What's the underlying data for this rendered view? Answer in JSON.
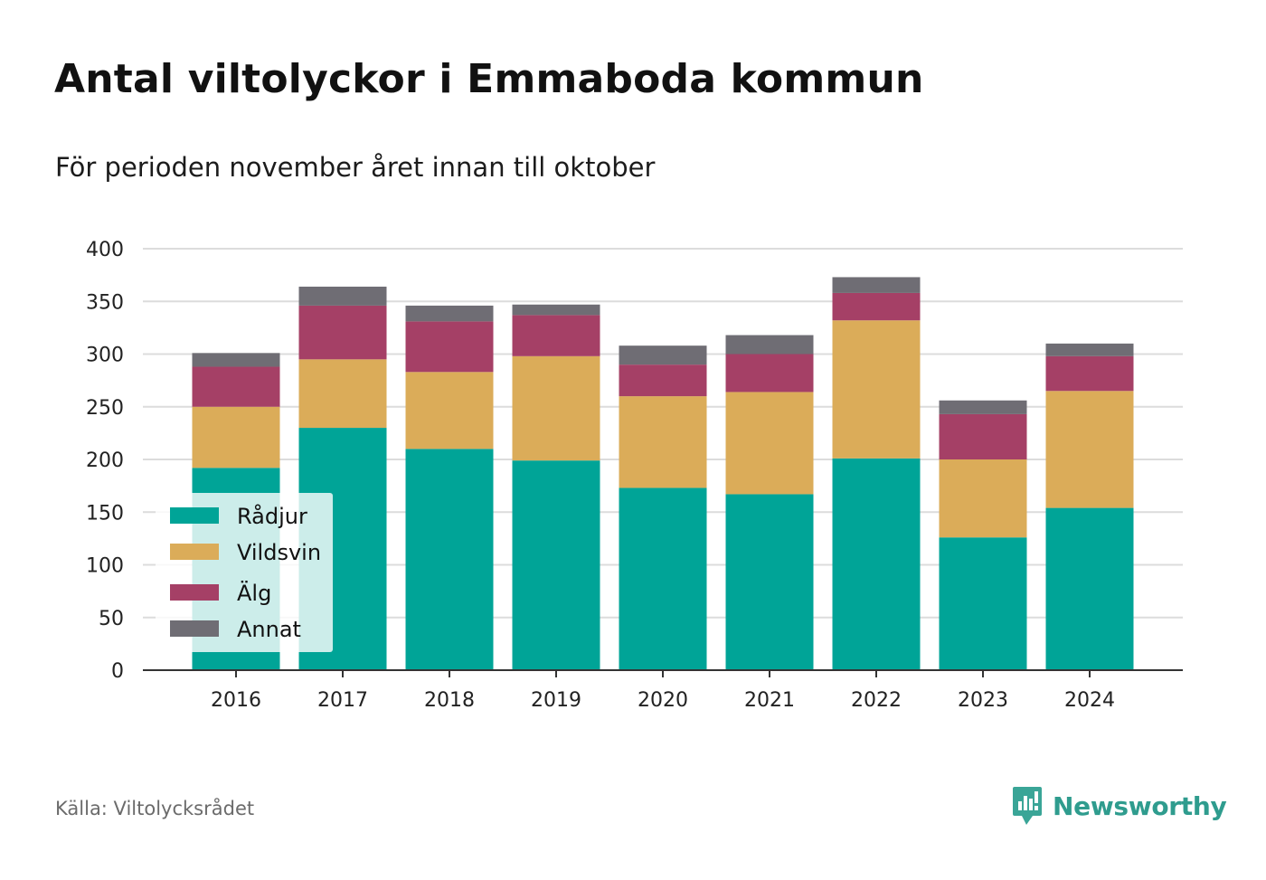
{
  "title": "Antal viltolyckor i Emmaboda kommun",
  "subtitle": "För perioden november året innan till oktober",
  "source": "Källa: Viltolycksrådet",
  "brand": {
    "name": "Newsworthy",
    "icon": "newsworthy-logo-icon",
    "color": "#2f9c8e"
  },
  "chart_data": {
    "type": "bar",
    "stacked": true,
    "title": "Antal viltolyckor i Emmaboda kommun",
    "subtitle": "För perioden november året innan till oktober",
    "xlabel": "",
    "ylabel": "",
    "ylim": [
      0,
      400
    ],
    "yticks": [
      "0",
      "50",
      "100",
      "150",
      "200",
      "250",
      "300",
      "350",
      "400"
    ],
    "grid": true,
    "legend_position": "bottom-left",
    "categories": [
      "2016",
      "2017",
      "2018",
      "2019",
      "2020",
      "2021",
      "2022",
      "2023",
      "2024"
    ],
    "series": [
      {
        "name": "Rådjur",
        "color": "#00a497",
        "values": [
          192,
          230,
          210,
          199,
          173,
          167,
          201,
          126,
          154
        ]
      },
      {
        "name": "Vildsvin",
        "color": "#dbac59",
        "values": [
          58,
          65,
          73,
          99,
          87,
          97,
          131,
          74,
          111
        ]
      },
      {
        "name": "Älg",
        "color": "#a54066",
        "values": [
          38,
          51,
          48,
          39,
          30,
          36,
          26,
          43,
          33
        ]
      },
      {
        "name": "Annat",
        "color": "#6f6d74",
        "values": [
          13,
          18,
          15,
          10,
          18,
          18,
          15,
          13,
          12
        ]
      }
    ]
  }
}
